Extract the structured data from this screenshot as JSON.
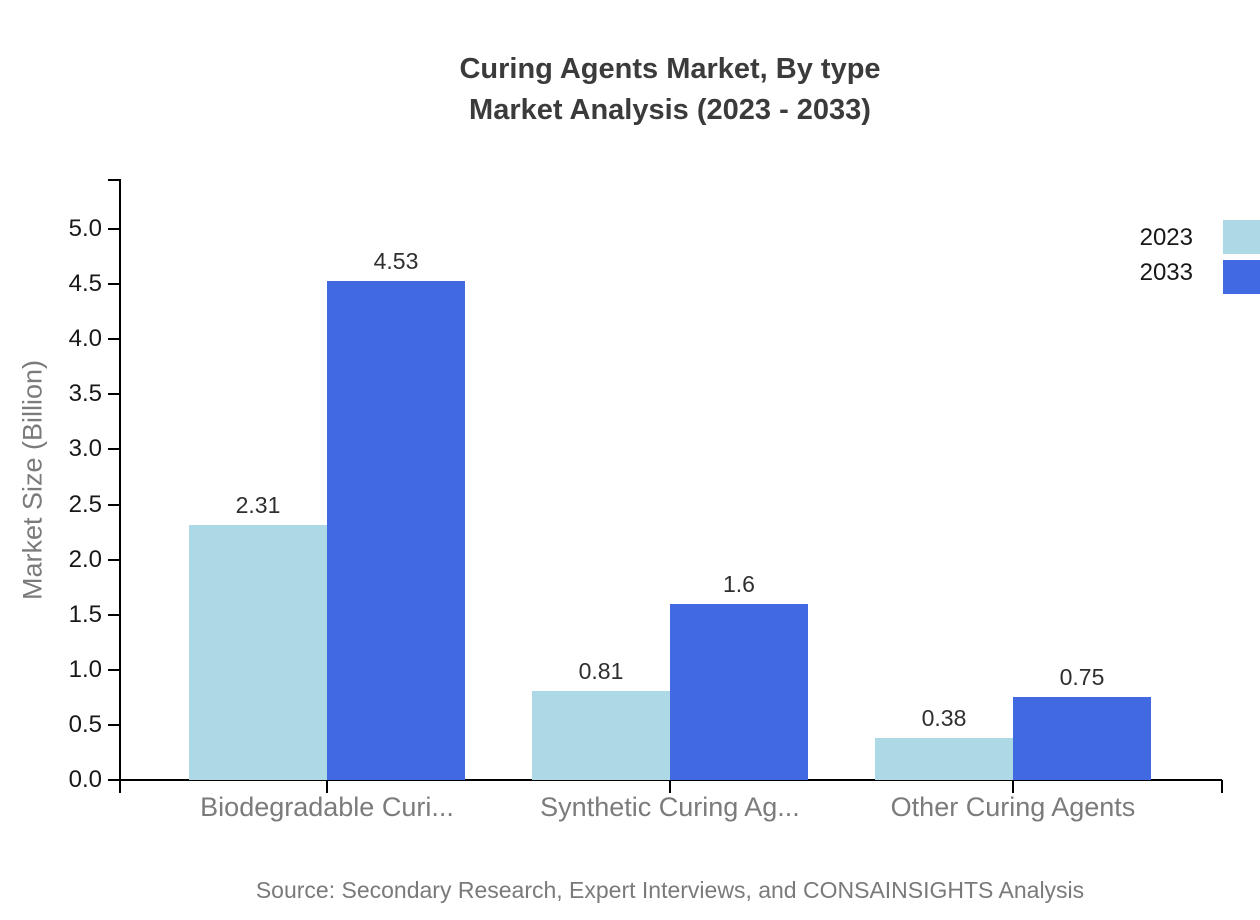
{
  "title": {
    "line1": "Curing Agents Market, By type",
    "line2": "Market Analysis (2023 - 2033)"
  },
  "chart_data": {
    "type": "bar",
    "categories": [
      "Biodegradable Curi...",
      "Synthetic Curing Ag...",
      "Other Curing Agents"
    ],
    "series": [
      {
        "name": "2023",
        "color": "#ADD8E6",
        "values": [
          2.31,
          0.81,
          0.38
        ]
      },
      {
        "name": "2033",
        "color": "#4169E1",
        "values": [
          4.53,
          1.6,
          0.75
        ]
      }
    ],
    "value_labels": [
      [
        "2.31",
        "0.81",
        "0.38"
      ],
      [
        "4.53",
        "1.6",
        "0.75"
      ]
    ],
    "xlabel": "",
    "ylabel": "Market Size (Billion)",
    "ylim": [
      0,
      5.4
    ],
    "yticks": [
      "0.0",
      "0.5",
      "1.0",
      "1.5",
      "2.0",
      "2.5",
      "3.0",
      "3.5",
      "4.0",
      "4.5",
      "5.0"
    ],
    "grid": false,
    "legend_position": "top-right",
    "axis_color": "#000000",
    "tick_label_color": "#181818",
    "category_label_color": "#7b7b7b",
    "value_label_color": "#2f2f2f",
    "title_color": "#3b3b3b"
  },
  "source": "Source: Secondary Research, Expert Interviews, and CONSAINSIGHTS Analysis"
}
